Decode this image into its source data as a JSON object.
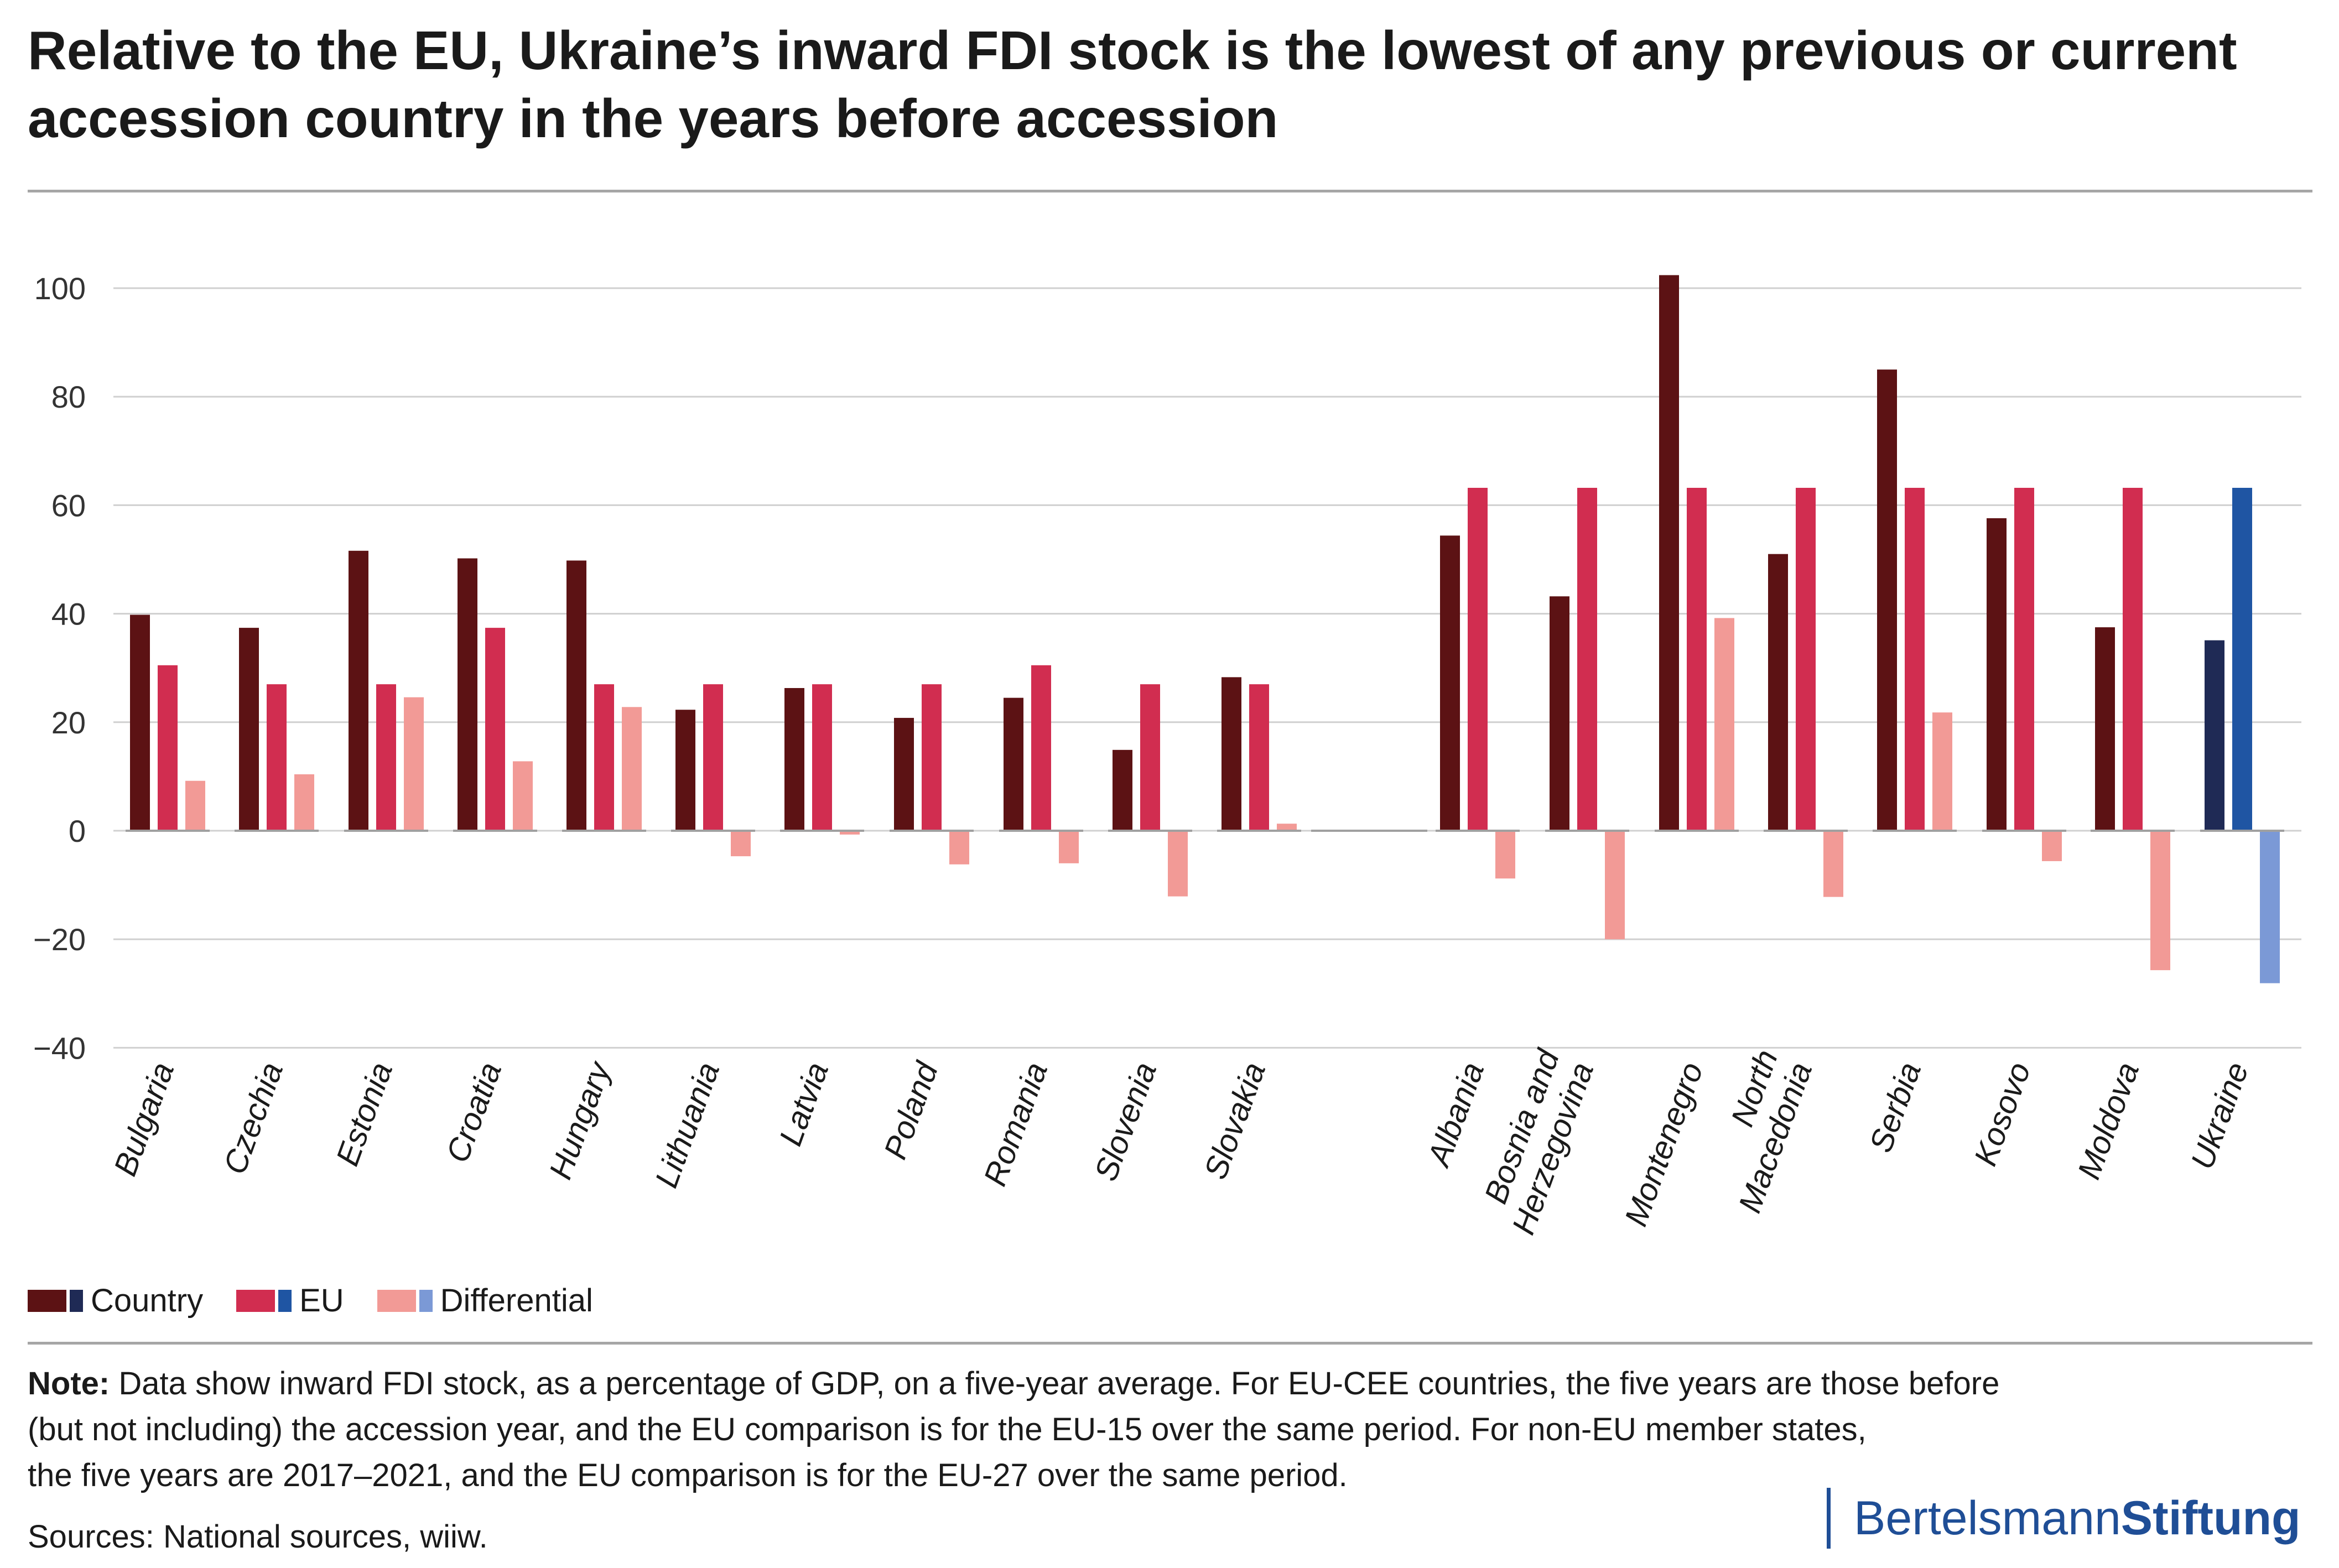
{
  "title": "Relative to the EU, Ukraine’s inward FDI stock is the lowest of any previous or current accession country in the years before accession",
  "legend": {
    "items": [
      {
        "label": "Country",
        "color": "#5c1214",
        "alt_color": "#1f2a55"
      },
      {
        "label": "EU",
        "color": "#d12d50",
        "alt_color": "#1f55a3"
      },
      {
        "label": "Differential",
        "color": "#f29a96",
        "alt_color": "#7b99d6"
      }
    ]
  },
  "note": {
    "label": "Note:",
    "lines": [
      "Data show inward FDI stock, as a percentage of GDP, on a five-year average. For EU-CEE countries, the five years are those before",
      "(but not including) the accession year, and the EU comparison is for the EU-15 over the same period. For non-EU member states,",
      "the five years are 2017–2021, and the EU comparison is for the EU-27 over the same period."
    ]
  },
  "sources": "Sources: National sources, wiiw.",
  "logo": {
    "part1": "Bertelsmann",
    "part2": "Stiftung",
    "color": "#1f4e96"
  },
  "chart_data": {
    "type": "bar",
    "title": "Relative to the EU, Ukraine’s inward FDI stock is the lowest of any previous or current accession country in the years before accession",
    "xlabel": "",
    "ylabel": "",
    "ylim": [
      -40,
      110
    ],
    "yticks": [
      100,
      80,
      60,
      40,
      20,
      0,
      -20,
      -40
    ],
    "ytick_labels": [
      "100",
      "80",
      "60",
      "40",
      "20",
      "0",
      "−20",
      "−40"
    ],
    "grid": true,
    "legend_position": "bottom-left",
    "categories": [
      {
        "label": [
          "Bulgaria"
        ],
        "country": 39.8,
        "eu": 30.5,
        "diff": 9.2
      },
      {
        "label": [
          "Czechia"
        ],
        "country": 37.4,
        "eu": 27.0,
        "diff": 10.4
      },
      {
        "label": [
          "Estonia"
        ],
        "country": 51.6,
        "eu": 27.0,
        "diff": 24.6
      },
      {
        "label": [
          "Croatia"
        ],
        "country": 50.2,
        "eu": 37.4,
        "diff": 12.8
      },
      {
        "label": [
          "Hungary"
        ],
        "country": 49.8,
        "eu": 27.0,
        "diff": 22.8
      },
      {
        "label": [
          "Lithuania"
        ],
        "country": 22.3,
        "eu": 27.0,
        "diff": -4.7
      },
      {
        "label": [
          "Latvia"
        ],
        "country": 26.3,
        "eu": 27.0,
        "diff": -0.7
      },
      {
        "label": [
          "Poland"
        ],
        "country": 20.8,
        "eu": 27.0,
        "diff": -6.2
      },
      {
        "label": [
          "Romania"
        ],
        "country": 24.5,
        "eu": 30.5,
        "diff": -6.0
      },
      {
        "label": [
          "Slovenia"
        ],
        "country": 14.9,
        "eu": 27.0,
        "diff": -12.1
      },
      {
        "label": [
          "Slovakia"
        ],
        "country": 28.3,
        "eu": 27.0,
        "diff": 1.3
      },
      {
        "label": [
          "Albania"
        ],
        "country": 54.4,
        "eu": 63.2,
        "diff": -8.8
      },
      {
        "label": [
          "Bosnia and",
          "Herzegovina"
        ],
        "country": 43.2,
        "eu": 63.2,
        "diff": -20.0
      },
      {
        "label": [
          "Montenegro"
        ],
        "country": 102.4,
        "eu": 63.2,
        "diff": 39.2
      },
      {
        "label": [
          "North",
          "Macedonia"
        ],
        "country": 51.0,
        "eu": 63.2,
        "diff": -12.2
      },
      {
        "label": [
          "Serbia"
        ],
        "country": 85.0,
        "eu": 63.2,
        "diff": 21.8
      },
      {
        "label": [
          "Kosovo"
        ],
        "country": 57.6,
        "eu": 63.2,
        "diff": -5.6
      },
      {
        "label": [
          "Moldova"
        ],
        "country": 37.5,
        "eu": 63.2,
        "diff": -25.7
      },
      {
        "label": [
          "Ukraine"
        ],
        "country": 35.1,
        "eu": 63.2,
        "diff": -28.1,
        "highlight": true
      }
    ]
  }
}
